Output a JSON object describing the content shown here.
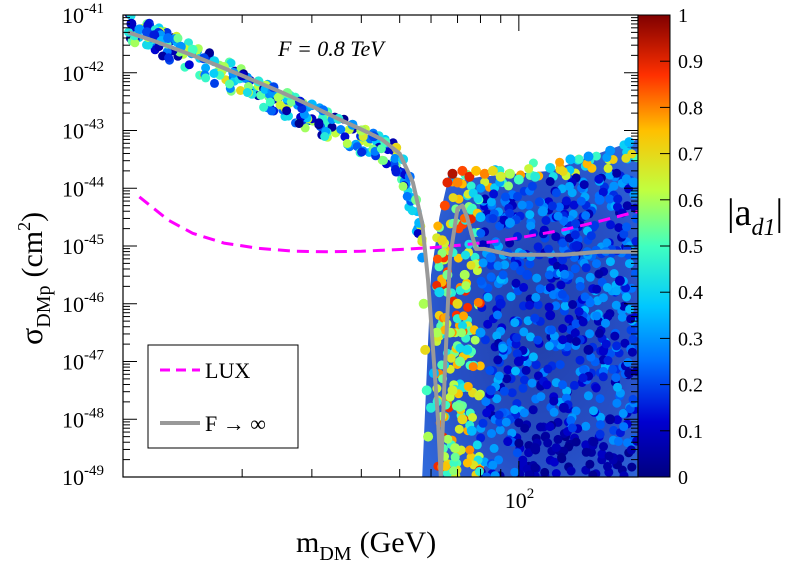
{
  "chart_data": {
    "type": "scatter",
    "title": "F = 0.8 TeV",
    "xlabel": {
      "main": "m",
      "sub": "DM",
      "unit": "(GeV)"
    },
    "ylabel": {
      "main": "σ",
      "sub": "DMp",
      "unit_prefix": "(cm",
      "unit_sup": "2",
      "unit_suffix": ")"
    },
    "x_scale": "log",
    "y_scale": "log",
    "xlim": [
      10,
      200
    ],
    "ylim": [
      1e-49,
      1e-41
    ],
    "x_tick_label": {
      "base": "10",
      "exp": "2",
      "value": 100
    },
    "y_tick_labels": [
      {
        "base": "10",
        "exp": "-41",
        "value": -41
      },
      {
        "base": "10",
        "exp": "-42",
        "value": -42
      },
      {
        "base": "10",
        "exp": "-43",
        "value": -43
      },
      {
        "base": "10",
        "exp": "-44",
        "value": -44
      },
      {
        "base": "10",
        "exp": "-45",
        "value": -45
      },
      {
        "base": "10",
        "exp": "-46",
        "value": -46
      },
      {
        "base": "10",
        "exp": "-47",
        "value": -47
      },
      {
        "base": "10",
        "exp": "-48",
        "value": -48
      },
      {
        "base": "10",
        "exp": "-49",
        "value": -49
      }
    ],
    "colorbar": {
      "label": "|a",
      "label_sub": "d1",
      "label_end": "|",
      "range": [
        0,
        1
      ],
      "ticks": [
        "1",
        "0.9",
        "0.8",
        "0.7",
        "0.6",
        "0.5",
        "0.4",
        "0.3",
        "0.2",
        "0.1",
        "0"
      ]
    },
    "series": [
      {
        "name": "LUX",
        "style": "dashed",
        "color": "#ff00ff",
        "x": [
          11,
          13,
          15,
          18,
          22,
          27,
          33,
          40,
          50,
          60,
          70,
          85,
          100,
          130,
          160,
          200
        ],
        "log10_y": [
          -44.15,
          -44.55,
          -44.78,
          -44.95,
          -45.04,
          -45.09,
          -45.1,
          -45.09,
          -45.06,
          -45.03,
          -44.99,
          -44.93,
          -44.86,
          -44.72,
          -44.57,
          -44.4
        ]
      },
      {
        "name": "F → ∞",
        "style": "solid",
        "color": "#999999",
        "x": [
          10.3,
          12,
          15,
          20,
          25,
          30,
          35,
          40,
          45,
          50,
          54,
          57,
          59,
          61,
          62.5,
          63.5,
          65,
          67,
          70,
          72,
          74,
          76,
          78,
          82,
          88,
          95,
          110,
          130,
          160,
          200
        ],
        "log10_y": [
          -41.3,
          -41.45,
          -41.7,
          -42.05,
          -42.33,
          -42.58,
          -42.8,
          -42.98,
          -43.15,
          -43.4,
          -43.9,
          -44.6,
          -45.6,
          -47.0,
          -48.0,
          -49.0,
          -47.2,
          -45.2,
          -44.35,
          -44.3,
          -44.5,
          -44.8,
          -45.05,
          -45.05,
          -45.1,
          -45.15,
          -45.15,
          -45.15,
          -45.1,
          -45.1
        ]
      }
    ],
    "legend": {
      "position": "bottom-left",
      "entries": [
        {
          "label": "LUX",
          "style": "dashed",
          "color": "#ff00ff"
        },
        {
          "label": "F → ∞",
          "style": "solid",
          "color": "#999999"
        }
      ]
    },
    "scatter_description_note": "dense cloud of scan points colored by |a_d1|, count not enumerable",
    "points": [
      {
        "x": 10.5,
        "log10_y": -41.15,
        "c": 0.1
      },
      {
        "x": 11,
        "log10_y": -41.25,
        "c": 0.3
      },
      {
        "x": 11.5,
        "log10_y": -41.3,
        "c": 0.2
      },
      {
        "x": 12,
        "log10_y": -41.35,
        "c": 0.15
      },
      {
        "x": 12.5,
        "log10_y": -41.45,
        "c": 0.35
      },
      {
        "x": 13,
        "log10_y": -41.4,
        "c": 0.25
      },
      {
        "x": 14,
        "log10_y": -41.55,
        "c": 0.3
      },
      {
        "x": 15,
        "log10_y": -41.6,
        "c": 0.5
      },
      {
        "x": 16,
        "log10_y": -41.75,
        "c": 0.2
      },
      {
        "x": 17,
        "log10_y": -41.8,
        "c": 0.4
      },
      {
        "x": 18,
        "log10_y": -41.9,
        "c": 0.6
      },
      {
        "x": 19,
        "log10_y": -42.0,
        "c": 0.3
      },
      {
        "x": 20,
        "log10_y": -42.05,
        "c": 0.1
      },
      {
        "x": 22,
        "log10_y": -42.15,
        "c": 0.45
      },
      {
        "x": 24,
        "log10_y": -42.25,
        "c": 0.2
      },
      {
        "x": 26,
        "log10_y": -42.35,
        "c": 0.55
      },
      {
        "x": 28,
        "log10_y": -42.5,
        "c": 0.15
      },
      {
        "x": 30,
        "log10_y": -42.55,
        "c": 0.35
      },
      {
        "x": 32,
        "log10_y": -42.65,
        "c": 0.25
      },
      {
        "x": 35,
        "log10_y": -42.8,
        "c": 0.45
      },
      {
        "x": 38,
        "log10_y": -42.9,
        "c": 0.3
      },
      {
        "x": 40,
        "log10_y": -43.0,
        "c": 0.6
      },
      {
        "x": 43,
        "log10_y": -43.1,
        "c": 0.2
      },
      {
        "x": 46,
        "log10_y": -43.2,
        "c": 0.5
      },
      {
        "x": 49,
        "log10_y": -43.3,
        "c": 0.7
      },
      {
        "x": 51,
        "log10_y": -43.5,
        "c": 0.4
      },
      {
        "x": 53,
        "log10_y": -43.8,
        "c": 0.25
      },
      {
        "x": 55,
        "log10_y": -44.2,
        "c": 0.55
      },
      {
        "x": 56,
        "log10_y": -44.6,
        "c": 0.35
      },
      {
        "x": 57,
        "log10_y": -45.2,
        "c": 0.3
      },
      {
        "x": 57.5,
        "log10_y": -46.0,
        "c": 0.6
      },
      {
        "x": 58,
        "log10_y": -46.8,
        "c": 0.7
      },
      {
        "x": 58.5,
        "log10_y": -47.5,
        "c": 0.5
      },
      {
        "x": 59,
        "log10_y": -48.3,
        "c": 0.6
      },
      {
        "x": 60,
        "log10_y": -47.8,
        "c": 0.45
      },
      {
        "x": 61,
        "log10_y": -47.2,
        "c": 0.35
      },
      {
        "x": 62,
        "log10_y": -46.5,
        "c": 0.6
      },
      {
        "x": 63,
        "log10_y": -45.8,
        "c": 0.4
      },
      {
        "x": 64,
        "log10_y": -44.9,
        "c": 0.7
      },
      {
        "x": 65,
        "log10_y": -44.3,
        "c": 0.85
      },
      {
        "x": 66,
        "log10_y": -43.9,
        "c": 0.9
      },
      {
        "x": 68,
        "log10_y": -43.75,
        "c": 0.95
      },
      {
        "x": 70,
        "log10_y": -43.9,
        "c": 0.8
      },
      {
        "x": 72,
        "log10_y": -43.7,
        "c": 0.85
      },
      {
        "x": 75,
        "log10_y": -43.8,
        "c": 0.9
      },
      {
        "x": 78,
        "log10_y": -43.7,
        "c": 0.75
      },
      {
        "x": 82,
        "log10_y": -43.75,
        "c": 0.8
      },
      {
        "x": 86,
        "log10_y": -43.7,
        "c": 0.7
      },
      {
        "x": 90,
        "log10_y": -43.8,
        "c": 0.65
      },
      {
        "x": 95,
        "log10_y": -43.75,
        "c": 0.6
      },
      {
        "x": 100,
        "log10_y": -43.85,
        "c": 0.5
      },
      {
        "x": 110,
        "log10_y": -43.8,
        "c": 0.45
      },
      {
        "x": 120,
        "log10_y": -43.65,
        "c": 0.4
      },
      {
        "x": 135,
        "log10_y": -43.5,
        "c": 0.35
      },
      {
        "x": 150,
        "log10_y": -43.45,
        "c": 0.3
      },
      {
        "x": 170,
        "log10_y": -43.35,
        "c": 0.3
      },
      {
        "x": 190,
        "log10_y": -43.2,
        "c": 0.35
      },
      {
        "x": 66,
        "log10_y": -45.5,
        "c": 0.55
      },
      {
        "x": 67,
        "log10_y": -46.5,
        "c": 0.6
      },
      {
        "x": 68,
        "log10_y": -47.5,
        "c": 0.65
      },
      {
        "x": 69,
        "log10_y": -48.5,
        "c": 0.6
      },
      {
        "x": 70,
        "log10_y": -46.0,
        "c": 0.7
      },
      {
        "x": 71,
        "log10_y": -47.0,
        "c": 0.55
      },
      {
        "x": 72,
        "log10_y": -48.0,
        "c": 0.7
      },
      {
        "x": 73,
        "log10_y": -45.5,
        "c": 0.6
      },
      {
        "x": 74,
        "log10_y": -46.8,
        "c": 0.4
      },
      {
        "x": 76,
        "log10_y": -48.2,
        "c": 0.35
      },
      {
        "x": 80,
        "log10_y": -44.5,
        "c": 0.35
      },
      {
        "x": 80,
        "log10_y": -46.5,
        "c": 0.3
      },
      {
        "x": 85,
        "log10_y": -45.2,
        "c": 0.25
      },
      {
        "x": 85,
        "log10_y": -47.5,
        "c": 0.2
      },
      {
        "x": 90,
        "log10_y": -46.0,
        "c": 0.15
      },
      {
        "x": 95,
        "log10_y": -44.6,
        "c": 0.3
      },
      {
        "x": 100,
        "log10_y": -47.0,
        "c": 0.1
      },
      {
        "x": 105,
        "log10_y": -45.5,
        "c": 0.2
      },
      {
        "x": 110,
        "log10_y": -48.5,
        "c": 0.05
      },
      {
        "x": 115,
        "log10_y": -44.4,
        "c": 0.3
      },
      {
        "x": 120,
        "log10_y": -46.2,
        "c": 0.1
      },
      {
        "x": 130,
        "log10_y": -47.8,
        "c": 0.08
      },
      {
        "x": 140,
        "log10_y": -45.0,
        "c": 0.15
      },
      {
        "x": 150,
        "log10_y": -46.8,
        "c": 0.05
      },
      {
        "x": 160,
        "log10_y": -44.2,
        "c": 0.25
      },
      {
        "x": 170,
        "log10_y": -48.0,
        "c": 0.05
      },
      {
        "x": 180,
        "log10_y": -45.6,
        "c": 0.1
      },
      {
        "x": 190,
        "log10_y": -47.2,
        "c": 0.05
      },
      {
        "x": 195,
        "log10_y": -43.9,
        "c": 0.3
      }
    ]
  }
}
